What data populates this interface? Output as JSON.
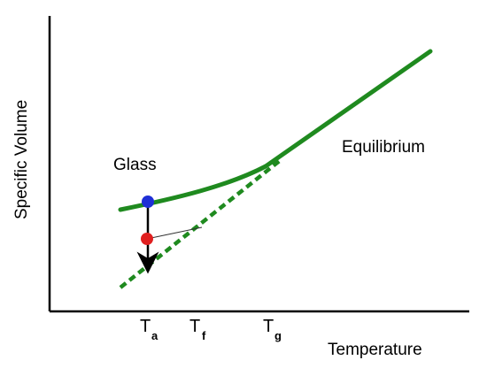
{
  "chart_data": {
    "type": "line",
    "xlabel": "Temperature",
    "ylabel": "Specific Volume",
    "curve_labels": {
      "glass": "Glass",
      "equilibrium": "Equilibrium"
    },
    "x_ticks": [
      {
        "main": "T",
        "sub": "a"
      },
      {
        "main": "T",
        "sub": "f"
      },
      {
        "main": "T",
        "sub": "g"
      }
    ],
    "colors": {
      "curve": "#1f8a1f",
      "glass_point": "#1f2fd6",
      "aged_point": "#e02020",
      "axis": "#000000"
    }
  }
}
